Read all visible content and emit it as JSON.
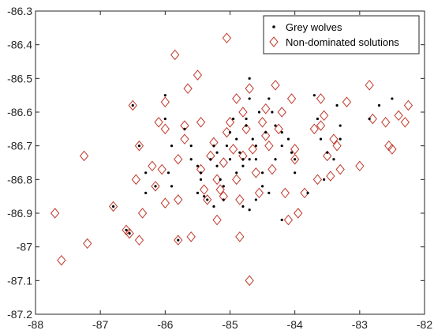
{
  "chart_data": {
    "type": "scatter",
    "title": "",
    "xlabel": "",
    "ylabel": "",
    "xlim": [
      -88,
      -82
    ],
    "ylim": [
      -87.2,
      -86.3
    ],
    "xticks": [
      -88,
      -87,
      -86,
      -85,
      -84,
      -83,
      -82
    ],
    "yticks": [
      -86.3,
      -86.4,
      -86.5,
      -86.6,
      -86.7,
      -86.8,
      -86.9,
      -87,
      -87.1,
      -87.2
    ],
    "xtick_labels": [
      "-88",
      "-87",
      "-86",
      "-85",
      "-84",
      "-83",
      "-82"
    ],
    "ytick_labels": [
      "-86.3",
      "-86.4",
      "-86.5",
      "-86.6",
      "-86.7",
      "-86.8",
      "-86.9",
      "-87",
      "-87.1",
      "-87.2"
    ],
    "grid": false,
    "legend_position": "top-right",
    "colors": {
      "dots": "#000000",
      "diamonds": "#c0392b"
    },
    "series": [
      {
        "name": "Grey wolves",
        "marker": "dot",
        "points": [
          [
            -86.5,
            -86.58
          ],
          [
            -86.4,
            -86.7
          ],
          [
            -86.3,
            -86.78
          ],
          [
            -86.3,
            -86.84
          ],
          [
            -86.15,
            -86.82
          ],
          [
            -86.0,
            -86.55
          ],
          [
            -86.0,
            -86.62
          ],
          [
            -85.9,
            -86.7
          ],
          [
            -85.95,
            -86.78
          ],
          [
            -85.9,
            -86.82
          ],
          [
            -85.7,
            -86.65
          ],
          [
            -85.6,
            -86.7
          ],
          [
            -85.6,
            -86.74
          ],
          [
            -85.5,
            -86.76
          ],
          [
            -85.45,
            -86.78
          ],
          [
            -85.45,
            -86.8
          ],
          [
            -85.5,
            -86.84
          ],
          [
            -85.4,
            -86.85
          ],
          [
            -85.3,
            -86.74
          ],
          [
            -85.25,
            -86.7
          ],
          [
            -85.2,
            -86.72
          ],
          [
            -85.2,
            -86.76
          ],
          [
            -85.15,
            -86.8
          ],
          [
            -85.1,
            -86.82
          ],
          [
            -85.05,
            -86.7
          ],
          [
            -85.0,
            -86.66
          ],
          [
            -85.0,
            -86.74
          ],
          [
            -84.95,
            -86.62
          ],
          [
            -84.9,
            -86.68
          ],
          [
            -84.85,
            -86.72
          ],
          [
            -84.8,
            -86.74
          ],
          [
            -84.8,
            -86.76
          ],
          [
            -84.75,
            -86.64
          ],
          [
            -84.7,
            -86.5
          ],
          [
            -84.7,
            -86.56
          ],
          [
            -84.65,
            -86.68
          ],
          [
            -84.6,
            -86.7
          ],
          [
            -84.6,
            -86.74
          ],
          [
            -84.55,
            -86.6
          ],
          [
            -84.5,
            -86.78
          ],
          [
            -84.5,
            -86.82
          ],
          [
            -84.45,
            -86.66
          ],
          [
            -84.4,
            -86.56
          ],
          [
            -84.35,
            -86.6
          ],
          [
            -84.3,
            -86.64
          ],
          [
            -84.2,
            -86.66
          ],
          [
            -84.2,
            -86.7
          ],
          [
            -84.1,
            -86.68
          ],
          [
            -84.05,
            -86.72
          ],
          [
            -85.25,
            -86.88
          ],
          [
            -85.35,
            -86.86
          ],
          [
            -84.8,
            -86.88
          ],
          [
            -84.7,
            -86.89
          ],
          [
            -84.6,
            -86.86
          ],
          [
            -84.2,
            -86.92
          ],
          [
            -84.0,
            -86.78
          ],
          [
            -83.7,
            -86.55
          ],
          [
            -83.65,
            -86.62
          ],
          [
            -83.6,
            -86.68
          ],
          [
            -83.5,
            -86.72
          ],
          [
            -83.4,
            -86.74
          ],
          [
            -83.3,
            -86.68
          ],
          [
            -83.3,
            -86.64
          ],
          [
            -83.35,
            -86.58
          ],
          [
            -82.7,
            -86.58
          ],
          [
            -82.5,
            -86.56
          ],
          [
            -82.85,
            -86.62
          ],
          [
            -86.6,
            -86.95
          ],
          [
            -86.8,
            -86.88
          ],
          [
            -86.55,
            -86.96
          ],
          [
            -85.8,
            -86.98
          ],
          [
            -84.7,
            -86.74
          ],
          [
            -84.9,
            -86.78
          ],
          [
            -85.1,
            -86.86
          ],
          [
            -84.4,
            -86.84
          ],
          [
            -84.3,
            -86.74
          ],
          [
            -84.0,
            -86.74
          ],
          [
            -83.8,
            -86.84
          ],
          [
            -83.55,
            -86.8
          ],
          [
            -84.75,
            -86.62
          ]
        ]
      },
      {
        "name": "Non-dominated solutions",
        "marker": "diamond-open",
        "points": [
          [
            -87.7,
            -86.9
          ],
          [
            -87.6,
            -87.04
          ],
          [
            -87.25,
            -86.73
          ],
          [
            -87.2,
            -86.99
          ],
          [
            -86.8,
            -86.88
          ],
          [
            -86.5,
            -86.58
          ],
          [
            -86.45,
            -86.8
          ],
          [
            -86.4,
            -86.7
          ],
          [
            -86.4,
            -86.98
          ],
          [
            -86.35,
            -86.9
          ],
          [
            -86.6,
            -86.95
          ],
          [
            -86.55,
            -86.96
          ],
          [
            -86.2,
            -86.76
          ],
          [
            -86.15,
            -86.82
          ],
          [
            -86.1,
            -86.63
          ],
          [
            -86.05,
            -86.77
          ],
          [
            -86.0,
            -86.65
          ],
          [
            -86.0,
            -86.57
          ],
          [
            -86.0,
            -86.87
          ],
          [
            -85.85,
            -86.43
          ],
          [
            -85.8,
            -86.86
          ],
          [
            -85.8,
            -86.98
          ],
          [
            -85.8,
            -86.74
          ],
          [
            -85.7,
            -86.64
          ],
          [
            -85.7,
            -86.68
          ],
          [
            -85.65,
            -86.53
          ],
          [
            -85.6,
            -86.97
          ],
          [
            -85.5,
            -86.49
          ],
          [
            -85.45,
            -86.63
          ],
          [
            -85.45,
            -86.77
          ],
          [
            -85.4,
            -86.83
          ],
          [
            -85.35,
            -86.86
          ],
          [
            -85.3,
            -86.73
          ],
          [
            -85.25,
            -86.69
          ],
          [
            -85.2,
            -86.8
          ],
          [
            -85.2,
            -86.92
          ],
          [
            -85.15,
            -86.83
          ],
          [
            -85.1,
            -86.75
          ],
          [
            -85.1,
            -86.85
          ],
          [
            -85.05,
            -86.66
          ],
          [
            -85.05,
            -86.38
          ],
          [
            -85.0,
            -86.63
          ],
          [
            -84.95,
            -86.71
          ],
          [
            -84.9,
            -86.56
          ],
          [
            -84.9,
            -86.8
          ],
          [
            -84.85,
            -86.86
          ],
          [
            -84.85,
            -86.97
          ],
          [
            -84.8,
            -86.6
          ],
          [
            -84.75,
            -86.65
          ],
          [
            -84.7,
            -86.53
          ],
          [
            -84.7,
            -87.1
          ],
          [
            -84.65,
            -86.71
          ],
          [
            -84.6,
            -86.78
          ],
          [
            -84.55,
            -86.84
          ],
          [
            -84.5,
            -86.63
          ],
          [
            -84.45,
            -86.59
          ],
          [
            -84.45,
            -86.67
          ],
          [
            -84.4,
            -86.7
          ],
          [
            -84.35,
            -86.77
          ],
          [
            -84.3,
            -86.52
          ],
          [
            -84.25,
            -86.65
          ],
          [
            -84.2,
            -86.6
          ],
          [
            -84.15,
            -86.84
          ],
          [
            -84.1,
            -86.92
          ],
          [
            -84.05,
            -86.56
          ],
          [
            -84.0,
            -86.71
          ],
          [
            -84.0,
            -86.74
          ],
          [
            -83.95,
            -86.9
          ],
          [
            -83.85,
            -86.84
          ],
          [
            -83.7,
            -86.65
          ],
          [
            -83.65,
            -86.8
          ],
          [
            -83.6,
            -86.56
          ],
          [
            -83.55,
            -86.61
          ],
          [
            -83.5,
            -86.73
          ],
          [
            -83.45,
            -86.79
          ],
          [
            -83.4,
            -86.68
          ],
          [
            -83.35,
            -86.7
          ],
          [
            -83.3,
            -86.77
          ],
          [
            -83.2,
            -86.57
          ],
          [
            -83.0,
            -86.76
          ],
          [
            -82.85,
            -86.52
          ],
          [
            -82.8,
            -86.62
          ],
          [
            -82.6,
            -86.63
          ],
          [
            -82.55,
            -86.7
          ],
          [
            -82.5,
            -86.71
          ],
          [
            -82.4,
            -86.61
          ],
          [
            -82.3,
            -86.63
          ],
          [
            -82.25,
            -86.58
          ],
          [
            -83.6,
            -86.64
          ],
          [
            -84.8,
            -86.73
          ]
        ]
      }
    ]
  }
}
